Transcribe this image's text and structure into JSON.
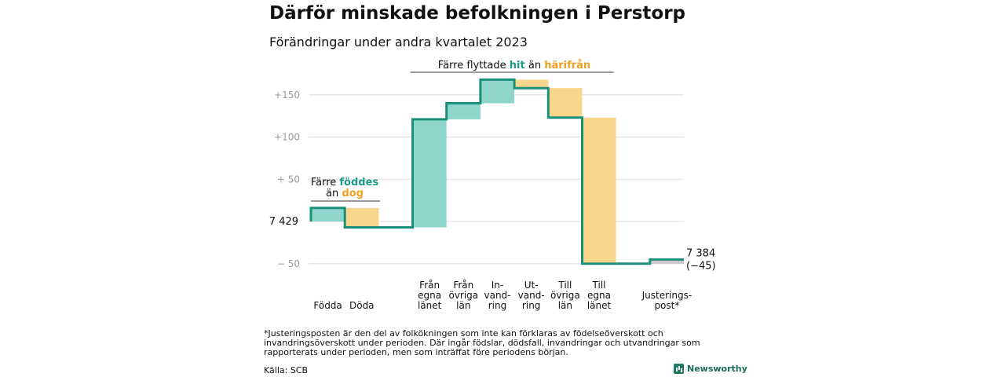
{
  "title": "Därför minskade befolkningen i Perstorp",
  "subtitle": "Förändringar under andra kvartalet 2023",
  "footnote": "*Justeringsposten är den del av folkökningen som inte kan förklaras av födelseöverskott och invandringsöverskott under perioden. Där ingår födslar, dödsfall, invandringar och utvandringar som rapporterats under perioden, men som inträffat före periodens början.",
  "source": "Källa: SCB",
  "brand": "Newsworthy",
  "colors": {
    "increase": "#8ed6cb",
    "decrease": "#fad68c",
    "line": "#1a8f7a",
    "adjust": "#c8c8c8",
    "teal_text": "#1a9a85",
    "orange_text": "#f0a020",
    "grid": "#dddddd"
  },
  "chart_data": {
    "type": "waterfall",
    "start_value": 7429,
    "start_label": "7 429",
    "end_value": 7384,
    "end_label": "7 384",
    "change_label": "(−45)",
    "yticks": [
      {
        "value": 150,
        "label": "+150"
      },
      {
        "value": 100,
        "label": "+100"
      },
      {
        "value": 50,
        "label": "+  50"
      },
      {
        "value": -50,
        "label": "−  50"
      }
    ],
    "ylim": [
      -55,
      175
    ],
    "steps": [
      {
        "lines": [
          "Födda"
        ],
        "inflow": 16,
        "outflow": 0,
        "kind": "in"
      },
      {
        "lines": [
          "Döda"
        ],
        "inflow": 0,
        "outflow": 23,
        "kind": "out"
      },
      {
        "lines": [
          ""
        ],
        "inflow": 0,
        "outflow": 0,
        "kind": "gap"
      },
      {
        "lines": [
          "Från",
          "egna",
          "länet"
        ],
        "inflow": 128,
        "outflow": 0,
        "kind": "in"
      },
      {
        "lines": [
          "Från",
          "övriga",
          "län"
        ],
        "inflow": 19,
        "outflow": 0,
        "kind": "in"
      },
      {
        "lines": [
          "In-",
          "vand-",
          "ring"
        ],
        "inflow": 28,
        "outflow": 0,
        "kind": "in"
      },
      {
        "lines": [
          "Ut-",
          "vand-",
          "ring"
        ],
        "inflow": 0,
        "outflow": 10,
        "kind": "out"
      },
      {
        "lines": [
          "Till",
          "övriga",
          "län"
        ],
        "inflow": 0,
        "outflow": 35,
        "kind": "out"
      },
      {
        "lines": [
          "Till",
          "egna",
          "länet"
        ],
        "inflow": 0,
        "outflow": 173,
        "kind": "out"
      },
      {
        "lines": [
          ""
        ],
        "inflow": 0,
        "outflow": 0,
        "kind": "gap"
      },
      {
        "lines": [
          "Justerings-",
          "post*"
        ],
        "inflow": 5,
        "outflow": 0,
        "kind": "adjust"
      }
    ],
    "annotations": {
      "births": {
        "line1": "Färre ",
        "hl1": "föddes",
        "line2": "än ",
        "hl2": "dog"
      },
      "migration": {
        "text": "Färre flyttade ",
        "hl1": "hit",
        "mid": "  än ",
        "hl2": "härifrån"
      }
    }
  }
}
